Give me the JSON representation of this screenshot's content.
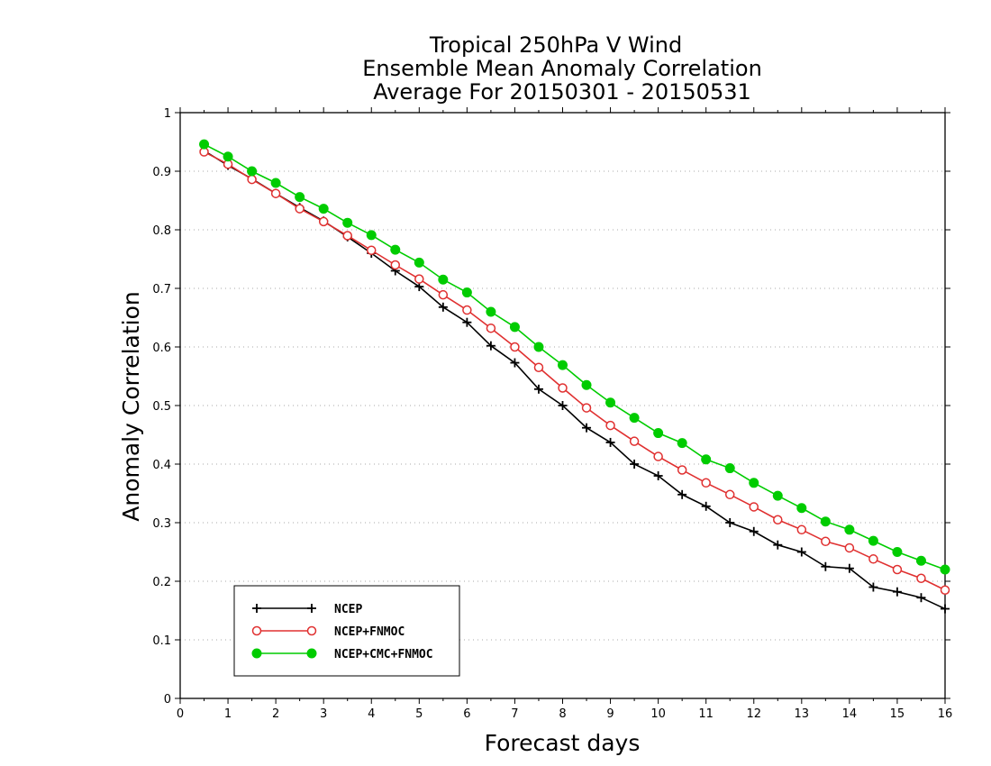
{
  "chart_data": {
    "type": "line",
    "title_lines": [
      "Tropical 250hPa V Wind",
      "Ensemble Mean Anomaly Correlation",
      "Average For 20150301 - 20150531"
    ],
    "xlabel": "Forecast days",
    "ylabel": "Anomaly Correlation",
    "xlim": [
      0,
      16
    ],
    "ylim": [
      0,
      1
    ],
    "xticks": [
      "0",
      "1",
      "2",
      "3",
      "4",
      "5",
      "6",
      "7",
      "8",
      "9",
      "10",
      "11",
      "12",
      "13",
      "14",
      "15",
      "16"
    ],
    "yticks": [
      "0",
      "0.1",
      "0.2",
      "0.3",
      "0.4",
      "0.5",
      "0.6",
      "0.7",
      "0.8",
      "0.9",
      "1"
    ],
    "grid": "horizontal dotted",
    "legend_position": "bottom-left",
    "x": [
      0.5,
      1,
      1.5,
      2,
      2.5,
      3,
      3.5,
      4,
      4.5,
      5,
      5.5,
      6,
      6.5,
      7,
      7.5,
      8,
      8.5,
      9,
      9.5,
      10,
      10.5,
      11,
      11.5,
      12,
      12.5,
      13,
      13.5,
      14,
      14.5,
      15,
      15.5,
      16
    ],
    "series": [
      {
        "name": "NCEP",
        "color": "#000000",
        "marker": "plus",
        "values": [
          0.935,
          0.91,
          0.887,
          0.862,
          0.838,
          0.815,
          0.788,
          0.76,
          0.73,
          0.703,
          0.668,
          0.642,
          0.602,
          0.573,
          0.528,
          0.5,
          0.462,
          0.437,
          0.4,
          0.38,
          0.348,
          0.328,
          0.3,
          0.285,
          0.262,
          0.25,
          0.225,
          0.222,
          0.19,
          0.182,
          0.172,
          0.153
        ]
      },
      {
        "name": "NCEP+FNMOC",
        "color": "#e03030",
        "marker": "open-circle",
        "values": [
          0.933,
          0.912,
          0.886,
          0.862,
          0.836,
          0.814,
          0.79,
          0.765,
          0.74,
          0.716,
          0.689,
          0.663,
          0.632,
          0.6,
          0.565,
          0.53,
          0.496,
          0.466,
          0.439,
          0.413,
          0.39,
          0.368,
          0.348,
          0.327,
          0.305,
          0.288,
          0.268,
          0.257,
          0.238,
          0.22,
          0.205,
          0.185
        ]
      },
      {
        "name": "NCEP+CMC+FNMOC",
        "color": "#00cc00",
        "marker": "filled-circle",
        "values": [
          0.946,
          0.925,
          0.9,
          0.88,
          0.856,
          0.836,
          0.812,
          0.791,
          0.766,
          0.744,
          0.715,
          0.693,
          0.66,
          0.634,
          0.6,
          0.569,
          0.535,
          0.505,
          0.479,
          0.453,
          0.436,
          0.408,
          0.393,
          0.368,
          0.346,
          0.325,
          0.302,
          0.288,
          0.269,
          0.25,
          0.235,
          0.22
        ]
      }
    ]
  }
}
